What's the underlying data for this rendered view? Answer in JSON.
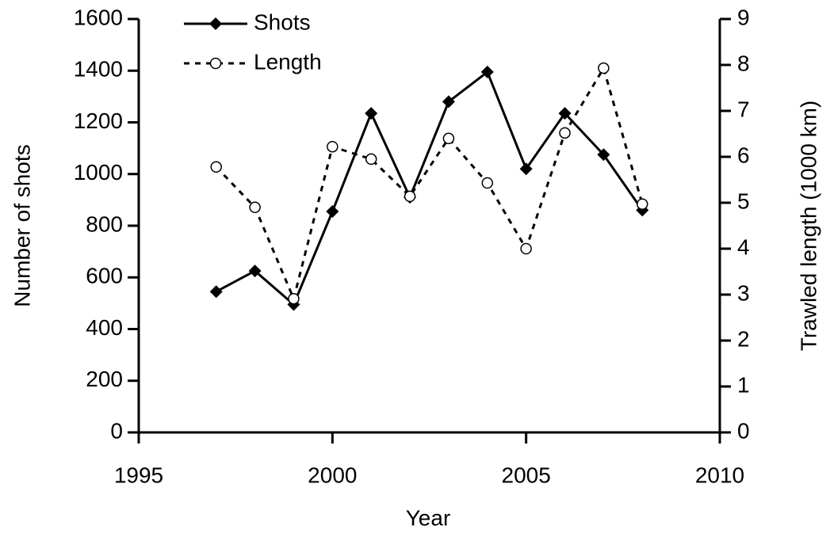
{
  "chart_data": {
    "type": "line",
    "x_label": "Year",
    "y_label": "Number of shots",
    "y2_label": "Trawled length (1000 km)",
    "x": [
      1997,
      1998,
      1999,
      2000,
      2001,
      2002,
      2003,
      2004,
      2005,
      2006,
      2007,
      2008
    ],
    "series": [
      {
        "name": "Shots",
        "color": "#000000",
        "line_style": "solid",
        "marker": "diamond",
        "values": [
          545,
          625,
          495,
          855,
          1235,
          910,
          1280,
          1395,
          1020,
          1235,
          1075,
          860
        ]
      },
      {
        "name": "Length",
        "color": "#000000",
        "line_style": "dashed",
        "marker": "circle",
        "axis": "y2",
        "values": [
          5.78,
          4.9,
          2.91,
          6.22,
          5.95,
          5.14,
          6.4,
          5.43,
          4.0,
          6.52,
          7.93,
          4.97
        ]
      }
    ],
    "xlim": [
      1995,
      2010
    ],
    "xticks": [
      1995,
      2000,
      2005,
      2010
    ],
    "ylim": [
      0,
      1600
    ],
    "yticks": [
      0,
      200,
      400,
      600,
      800,
      1000,
      1200,
      1400,
      1600
    ],
    "y2lim": [
      0,
      9
    ],
    "y2ticks": [
      0,
      1,
      2,
      3,
      4,
      5,
      6,
      7,
      8,
      9
    ],
    "legend": "top-left",
    "grid": false
  }
}
